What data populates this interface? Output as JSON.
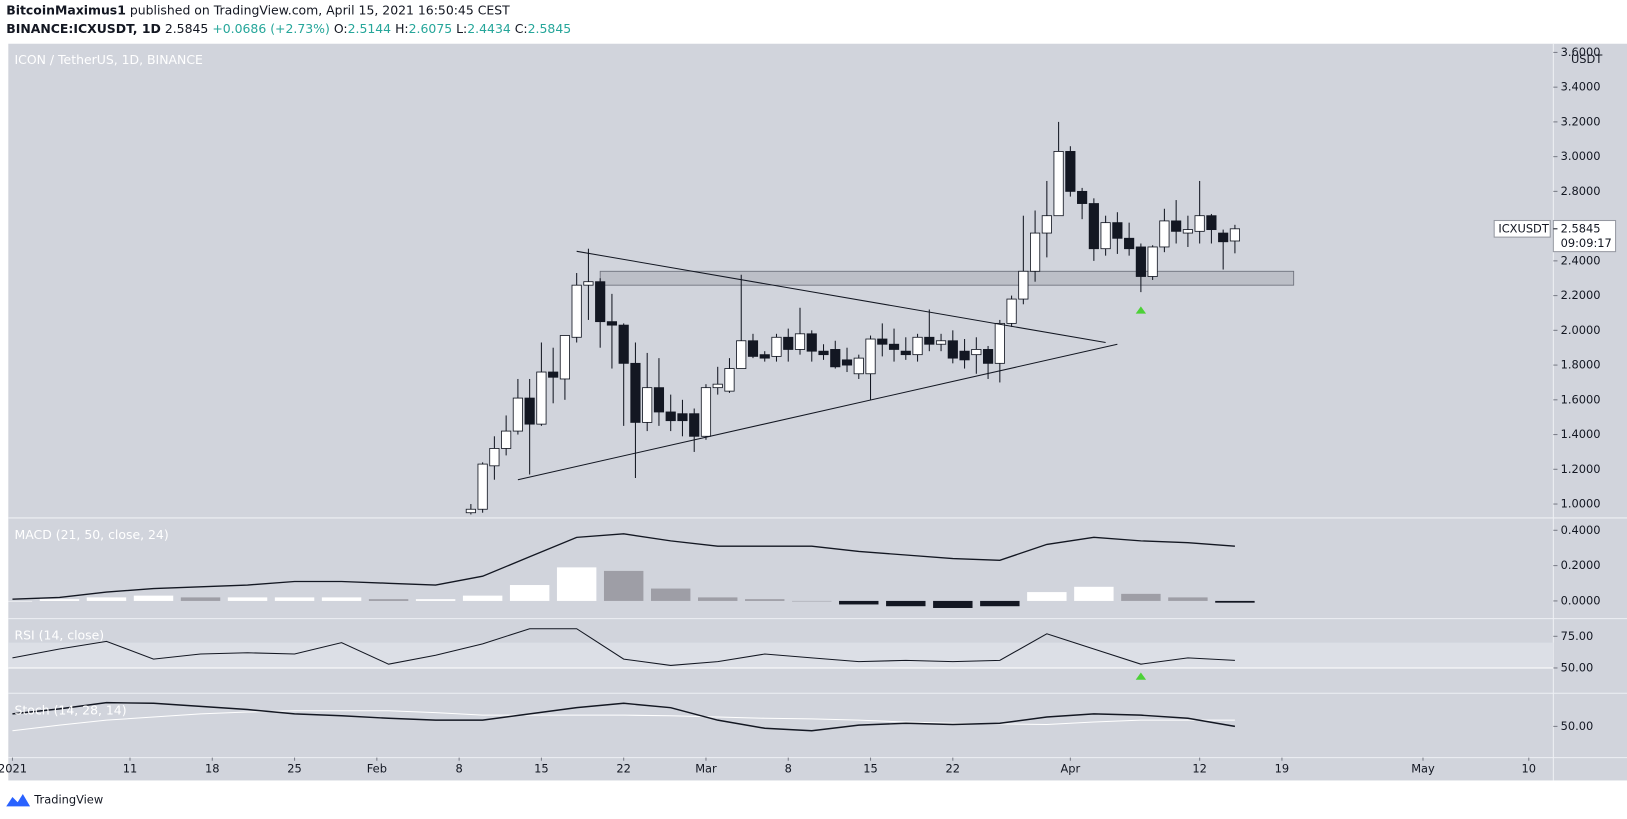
{
  "header": {
    "author": "BitcoinMaximus1",
    "published": "published on TradingView.com, April 15, 2021 16:50:45 CEST",
    "symbol": "BINANCE:ICXUSDT, 1D",
    "last": "2.5845",
    "change": "+0.0686 (+2.73%)",
    "ohlc": [
      {
        "label": "O:",
        "value": "2.5144"
      },
      {
        "label": "H:",
        "value": "2.6075"
      },
      {
        "label": "L:",
        "value": "2.4434"
      },
      {
        "label": "C:",
        "value": "2.5845"
      }
    ]
  },
  "chart_data": [
    {
      "type": "candlestick",
      "title": "ICON / TetherUS, 1D, BINANCE",
      "unit": "USDT",
      "x": [
        "2021-02-09",
        "2021-02-10",
        "2021-02-11",
        "2021-02-12",
        "2021-02-13",
        "2021-02-14",
        "2021-02-15",
        "2021-02-16",
        "2021-02-17",
        "2021-02-18",
        "2021-02-19",
        "2021-02-20",
        "2021-02-21",
        "2021-02-22",
        "2021-02-23",
        "2021-02-24",
        "2021-02-25",
        "2021-02-26",
        "2021-02-27",
        "2021-02-28",
        "2021-03-01",
        "2021-03-02",
        "2021-03-03",
        "2021-03-04",
        "2021-03-05",
        "2021-03-06",
        "2021-03-07",
        "2021-03-08",
        "2021-03-09",
        "2021-03-10",
        "2021-03-11",
        "2021-03-12",
        "2021-03-13",
        "2021-03-14",
        "2021-03-15",
        "2021-03-16",
        "2021-03-17",
        "2021-03-18",
        "2021-03-19",
        "2021-03-20",
        "2021-03-21",
        "2021-03-22",
        "2021-03-23",
        "2021-03-24",
        "2021-03-25",
        "2021-03-26",
        "2021-03-27",
        "2021-03-28",
        "2021-03-29",
        "2021-03-30",
        "2021-03-31",
        "2021-04-01",
        "2021-04-02",
        "2021-04-03",
        "2021-04-04",
        "2021-04-05",
        "2021-04-06",
        "2021-04-07",
        "2021-04-08",
        "2021-04-09",
        "2021-04-10",
        "2021-04-11",
        "2021-04-12",
        "2021-04-13",
        "2021-04-14",
        "2021-04-15"
      ],
      "open": [
        0.95,
        0.97,
        1.22,
        1.32,
        1.42,
        1.61,
        1.46,
        1.76,
        1.72,
        1.96,
        2.26,
        2.28,
        2.05,
        2.03,
        1.81,
        1.47,
        1.67,
        1.53,
        1.52,
        1.52,
        1.39,
        1.67,
        1.65,
        1.78,
        1.94,
        1.86,
        1.85,
        1.96,
        1.89,
        1.98,
        1.88,
        1.89,
        1.83,
        1.75,
        1.75,
        1.95,
        1.92,
        1.88,
        1.86,
        1.96,
        1.92,
        1.94,
        1.88,
        1.86,
        1.89,
        1.81,
        2.04,
        2.18,
        2.34,
        2.56,
        2.66,
        3.03,
        2.8,
        2.73,
        2.47,
        2.62,
        2.53,
        2.48,
        2.31,
        2.48,
        2.63,
        2.56,
        2.57,
        2.66,
        2.56,
        2.5144
      ],
      "high": [
        1.0,
        1.24,
        1.39,
        1.51,
        1.72,
        1.72,
        1.93,
        1.9,
        1.97,
        2.33,
        2.47,
        2.3,
        2.21,
        2.04,
        1.93,
        1.87,
        1.84,
        1.63,
        1.6,
        1.55,
        1.69,
        1.79,
        1.84,
        2.32,
        1.98,
        1.88,
        1.98,
        2.01,
        2.13,
        2.0,
        1.92,
        1.94,
        1.9,
        1.86,
        1.97,
        2.04,
        2.01,
        1.96,
        1.98,
        2.12,
        1.98,
        2.0,
        1.95,
        1.96,
        1.91,
        2.06,
        2.2,
        2.66,
        2.69,
        2.86,
        3.2,
        3.06,
        2.82,
        2.76,
        2.66,
        2.68,
        2.62,
        2.5,
        2.49,
        2.7,
        2.75,
        2.66,
        2.86,
        2.67,
        2.58,
        2.6075
      ],
      "low": [
        0.94,
        0.95,
        1.14,
        1.28,
        1.4,
        1.17,
        1.45,
        1.58,
        1.6,
        1.93,
        2.06,
        1.9,
        1.78,
        1.45,
        1.15,
        1.42,
        1.45,
        1.42,
        1.39,
        1.3,
        1.37,
        1.63,
        1.64,
        1.78,
        1.84,
        1.82,
        1.82,
        1.82,
        1.86,
        1.82,
        1.83,
        1.78,
        1.76,
        1.72,
        1.6,
        1.85,
        1.82,
        1.83,
        1.82,
        1.88,
        1.88,
        1.81,
        1.78,
        1.75,
        1.72,
        1.7,
        2.02,
        2.15,
        2.28,
        2.42,
        2.66,
        2.77,
        2.64,
        2.4,
        2.43,
        2.44,
        2.43,
        2.22,
        2.29,
        2.45,
        2.5,
        2.48,
        2.5,
        2.5,
        2.35,
        2.4434
      ],
      "close": [
        0.97,
        1.23,
        1.32,
        1.42,
        1.61,
        1.46,
        1.76,
        1.73,
        1.97,
        2.26,
        2.28,
        2.05,
        2.03,
        1.81,
        1.47,
        1.67,
        1.53,
        1.48,
        1.48,
        1.39,
        1.67,
        1.69,
        1.78,
        1.94,
        1.85,
        1.84,
        1.96,
        1.89,
        1.98,
        1.88,
        1.86,
        1.79,
        1.8,
        1.84,
        1.95,
        1.92,
        1.89,
        1.86,
        1.96,
        1.92,
        1.94,
        1.84,
        1.83,
        1.89,
        1.81,
        2.04,
        2.18,
        2.34,
        2.56,
        2.66,
        3.03,
        2.8,
        2.73,
        2.47,
        2.62,
        2.53,
        2.47,
        2.31,
        2.48,
        2.63,
        2.57,
        2.58,
        2.66,
        2.58,
        2.51,
        2.5845
      ],
      "colors": {
        "up": "#ffffff",
        "down": "#131722"
      },
      "xlim": [
        "2021-01-01",
        "2021-05-12"
      ],
      "xticks": [
        {
          "value": "2021-01-01",
          "label": "2021"
        },
        {
          "value": "2021-01-11",
          "label": "11"
        },
        {
          "value": "2021-01-18",
          "label": "18"
        },
        {
          "value": "2021-01-25",
          "label": "25"
        },
        {
          "value": "2021-02-01",
          "label": "Feb"
        },
        {
          "value": "2021-02-08",
          "label": "8"
        },
        {
          "value": "2021-02-15",
          "label": "15"
        },
        {
          "value": "2021-02-22",
          "label": "22"
        },
        {
          "value": "2021-03-01",
          "label": "Mar"
        },
        {
          "value": "2021-03-08",
          "label": "8"
        },
        {
          "value": "2021-03-15",
          "label": "15"
        },
        {
          "value": "2021-03-22",
          "label": "22"
        },
        {
          "value": "2021-04-01",
          "label": "Apr"
        },
        {
          "value": "2021-04-12",
          "label": "12"
        },
        {
          "value": "2021-04-19",
          "label": "19"
        },
        {
          "value": "2021-05-01",
          "label": "May"
        },
        {
          "value": "2021-05-10",
          "label": "10"
        }
      ],
      "ylim": [
        0.92,
        3.65
      ],
      "yticks": [
        {
          "value": 1,
          "label": "1.0000"
        },
        {
          "value": 1.2,
          "label": "1.2000"
        },
        {
          "value": 1.4,
          "label": "1.4000"
        },
        {
          "value": 1.6,
          "label": "1.6000"
        },
        {
          "value": 1.8,
          "label": "1.8000"
        },
        {
          "value": 2,
          "label": "2.0000"
        },
        {
          "value": 2.2,
          "label": "2.2000"
        },
        {
          "value": 2.4,
          "label": "2.4000"
        },
        {
          "value": 2.6,
          "label": "2.6000"
        },
        {
          "value": 2.8,
          "label": "2.8000"
        },
        {
          "value": 3,
          "label": "3.0000"
        },
        {
          "value": 3.2,
          "label": "3.2000"
        },
        {
          "value": 3.4,
          "label": "3.4000"
        },
        {
          "value": 3.6,
          "label": "3.6000"
        }
      ],
      "last_price": {
        "symbol": "ICXUSDT",
        "countdown": "09:09:17"
      },
      "annotations": {
        "lines": [
          {
            "x": [
              "2021-02-18",
              "2021-04-04"
            ],
            "y": [
              2.455,
              1.93
            ]
          },
          {
            "x": [
              "2021-02-13",
              "2021-04-05"
            ],
            "y": [
              1.14,
              1.92
            ]
          }
        ],
        "zone": {
          "x": [
            "2021-02-20",
            "2021-04-20"
          ],
          "y": [
            2.34,
            2.26
          ]
        },
        "arrows": [
          {
            "x": "2021-04-07",
            "y": 2.12,
            "color": "#4cd137"
          }
        ]
      }
    },
    {
      "type": "macd",
      "title": "MACD (21, 50, close, 24)",
      "x": [
        "2021-01-01",
        "2021-01-05",
        "2021-01-09",
        "2021-01-13",
        "2021-01-17",
        "2021-01-21",
        "2021-01-25",
        "2021-01-29",
        "2021-02-02",
        "2021-02-06",
        "2021-02-10",
        "2021-02-14",
        "2021-02-18",
        "2021-02-22",
        "2021-02-26",
        "2021-03-02",
        "2021-03-06",
        "2021-03-10",
        "2021-03-14",
        "2021-03-18",
        "2021-03-22",
        "2021-03-26",
        "2021-03-30",
        "2021-04-03",
        "2021-04-07",
        "2021-04-11",
        "2021-04-15"
      ],
      "line": [
        0.01,
        0.02,
        0.05,
        0.07,
        0.08,
        0.09,
        0.11,
        0.11,
        0.1,
        0.09,
        0.14,
        0.25,
        0.36,
        0.38,
        0.34,
        0.31,
        0.31,
        0.31,
        0.28,
        0.26,
        0.24,
        0.23,
        0.32,
        0.36,
        0.34,
        0.33,
        0.31
      ],
      "histogram": [
        0,
        0.01,
        0.02,
        0.03,
        0.02,
        0.02,
        0.02,
        0.02,
        0.01,
        0.01,
        0.03,
        0.09,
        0.19,
        0.17,
        0.07,
        0.02,
        0.01,
        0,
        -0.02,
        -0.03,
        -0.04,
        -0.03,
        0.05,
        0.08,
        0.04,
        0.02,
        -0.01
      ],
      "colors": {
        "line": "#131722",
        "rising": "#ffffff",
        "falling": "#9e9ea6",
        "negative": "#131722"
      },
      "ylim": [
        -0.1,
        0.47
      ],
      "yticks": [
        {
          "value": 0,
          "label": "0.0000"
        },
        {
          "value": 0.2,
          "label": "0.2000"
        },
        {
          "value": 0.4,
          "label": "0.4000"
        }
      ]
    },
    {
      "type": "line",
      "title": "RSI (14, close)",
      "x": [
        "2021-01-01",
        "2021-01-05",
        "2021-01-09",
        "2021-01-13",
        "2021-01-17",
        "2021-01-21",
        "2021-01-25",
        "2021-01-29",
        "2021-02-02",
        "2021-02-06",
        "2021-02-10",
        "2021-02-14",
        "2021-02-18",
        "2021-02-22",
        "2021-02-26",
        "2021-03-02",
        "2021-03-06",
        "2021-03-10",
        "2021-03-14",
        "2021-03-18",
        "2021-03-22",
        "2021-03-26",
        "2021-03-30",
        "2021-04-03",
        "2021-04-07",
        "2021-04-11",
        "2021-04-15"
      ],
      "values": [
        58,
        65,
        71,
        57,
        61,
        62,
        61,
        70,
        53,
        60,
        69,
        81,
        81,
        57,
        52,
        55,
        61,
        58,
        55,
        56,
        55,
        56,
        77,
        65,
        53,
        58,
        56
      ],
      "color": "#131722",
      "band": [
        50,
        70
      ],
      "ylim": [
        30,
        89
      ],
      "yticks": [
        {
          "value": 75,
          "label": "75.00"
        },
        {
          "value": 50,
          "label": "50.00"
        }
      ],
      "annotations": {
        "arrows": [
          {
            "x": "2021-04-07",
            "y": 44,
            "color": "#4cd137"
          }
        ]
      }
    },
    {
      "type": "stoch",
      "title": "Stoch (14, 28, 14)",
      "x": [
        "2021-01-01",
        "2021-01-05",
        "2021-01-09",
        "2021-01-13",
        "2021-01-17",
        "2021-01-21",
        "2021-01-25",
        "2021-01-29",
        "2021-02-02",
        "2021-02-06",
        "2021-02-10",
        "2021-02-14",
        "2021-02-18",
        "2021-02-22",
        "2021-02-26",
        "2021-03-02",
        "2021-03-06",
        "2021-03-10",
        "2021-03-14",
        "2021-03-18",
        "2021-03-22",
        "2021-03-26",
        "2021-03-30",
        "2021-04-03",
        "2021-04-07",
        "2021-04-11",
        "2021-04-15"
      ],
      "series": [
        {
          "color": "#131722",
          "values": [
            70,
            78,
            88,
            87,
            82,
            77,
            70,
            67,
            63,
            60,
            60,
            70,
            80,
            87,
            80,
            60,
            47,
            43,
            52,
            55,
            53,
            55,
            65,
            70,
            68,
            63,
            50
          ]
        },
        {
          "color": "#ffffff",
          "values": [
            43,
            52,
            60,
            65,
            70,
            73,
            75,
            75,
            75,
            72,
            68,
            68,
            68,
            68,
            67,
            65,
            63,
            62,
            60,
            57,
            55,
            54,
            53,
            57,
            60,
            60,
            60
          ]
        }
      ],
      "ylim": [
        0,
        103
      ],
      "yticks": [
        {
          "value": 50,
          "label": "50.00"
        }
      ]
    }
  ],
  "footer": {
    "brand": "TradingView"
  }
}
